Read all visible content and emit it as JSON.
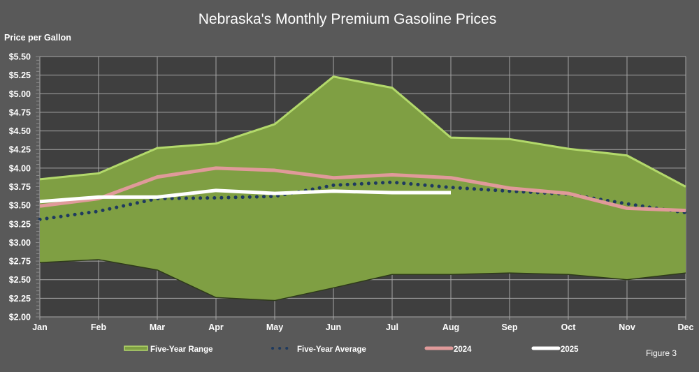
{
  "chart_data": {
    "type": "area",
    "title": "Nebraska's Monthly Premium Gasoline Prices",
    "ylabel": "Price per Gallon",
    "xlabel": "",
    "figure_label": "Figure 3",
    "categories": [
      "Jan",
      "Feb",
      "Mar",
      "Apr",
      "May",
      "Jun",
      "Jul",
      "Aug",
      "Sep",
      "Oct",
      "Nov",
      "Dec"
    ],
    "ylim": [
      2.0,
      5.5
    ],
    "ytick_step": 0.25,
    "ytick_labels": [
      "$2.00",
      "$2.25",
      "$2.50",
      "$2.75",
      "$3.00",
      "$3.25",
      "$3.50",
      "$3.75",
      "$4.00",
      "$4.25",
      "$4.50",
      "$4.75",
      "$5.00",
      "$5.25",
      "$5.50"
    ],
    "grid": true,
    "legend_position": "bottom",
    "range": {
      "name": "Five-Year Range",
      "upper": [
        3.85,
        3.93,
        4.27,
        4.33,
        4.59,
        5.23,
        5.08,
        4.41,
        4.39,
        4.26,
        4.17,
        3.75
      ],
      "lower": [
        2.73,
        2.77,
        2.63,
        2.26,
        2.22,
        2.39,
        2.57,
        2.57,
        2.59,
        2.57,
        2.5,
        2.59
      ],
      "color": "#7f9f43",
      "edge_color": "#b3d96b"
    },
    "series": [
      {
        "name": "Five-Year Average",
        "style": "dotted",
        "color": "#1f3a5f",
        "values": [
          3.31,
          3.42,
          3.59,
          3.6,
          3.62,
          3.77,
          3.81,
          3.74,
          3.69,
          3.65,
          3.52,
          3.4
        ]
      },
      {
        "name": "2024",
        "style": "solid",
        "color": "#e09a9a",
        "values": [
          3.49,
          3.59,
          3.88,
          4.0,
          3.97,
          3.87,
          3.91,
          3.87,
          3.73,
          3.66,
          3.46,
          3.43
        ]
      },
      {
        "name": "2025",
        "style": "solid",
        "color": "#ffffff",
        "values": [
          3.55,
          3.61,
          3.61,
          3.7,
          3.66,
          3.69,
          3.67,
          3.67,
          null,
          null,
          null,
          null
        ]
      }
    ]
  },
  "colors": {
    "background": "#595959",
    "plot_background": "#3f3f3f",
    "grid": "#a6a6a6"
  }
}
